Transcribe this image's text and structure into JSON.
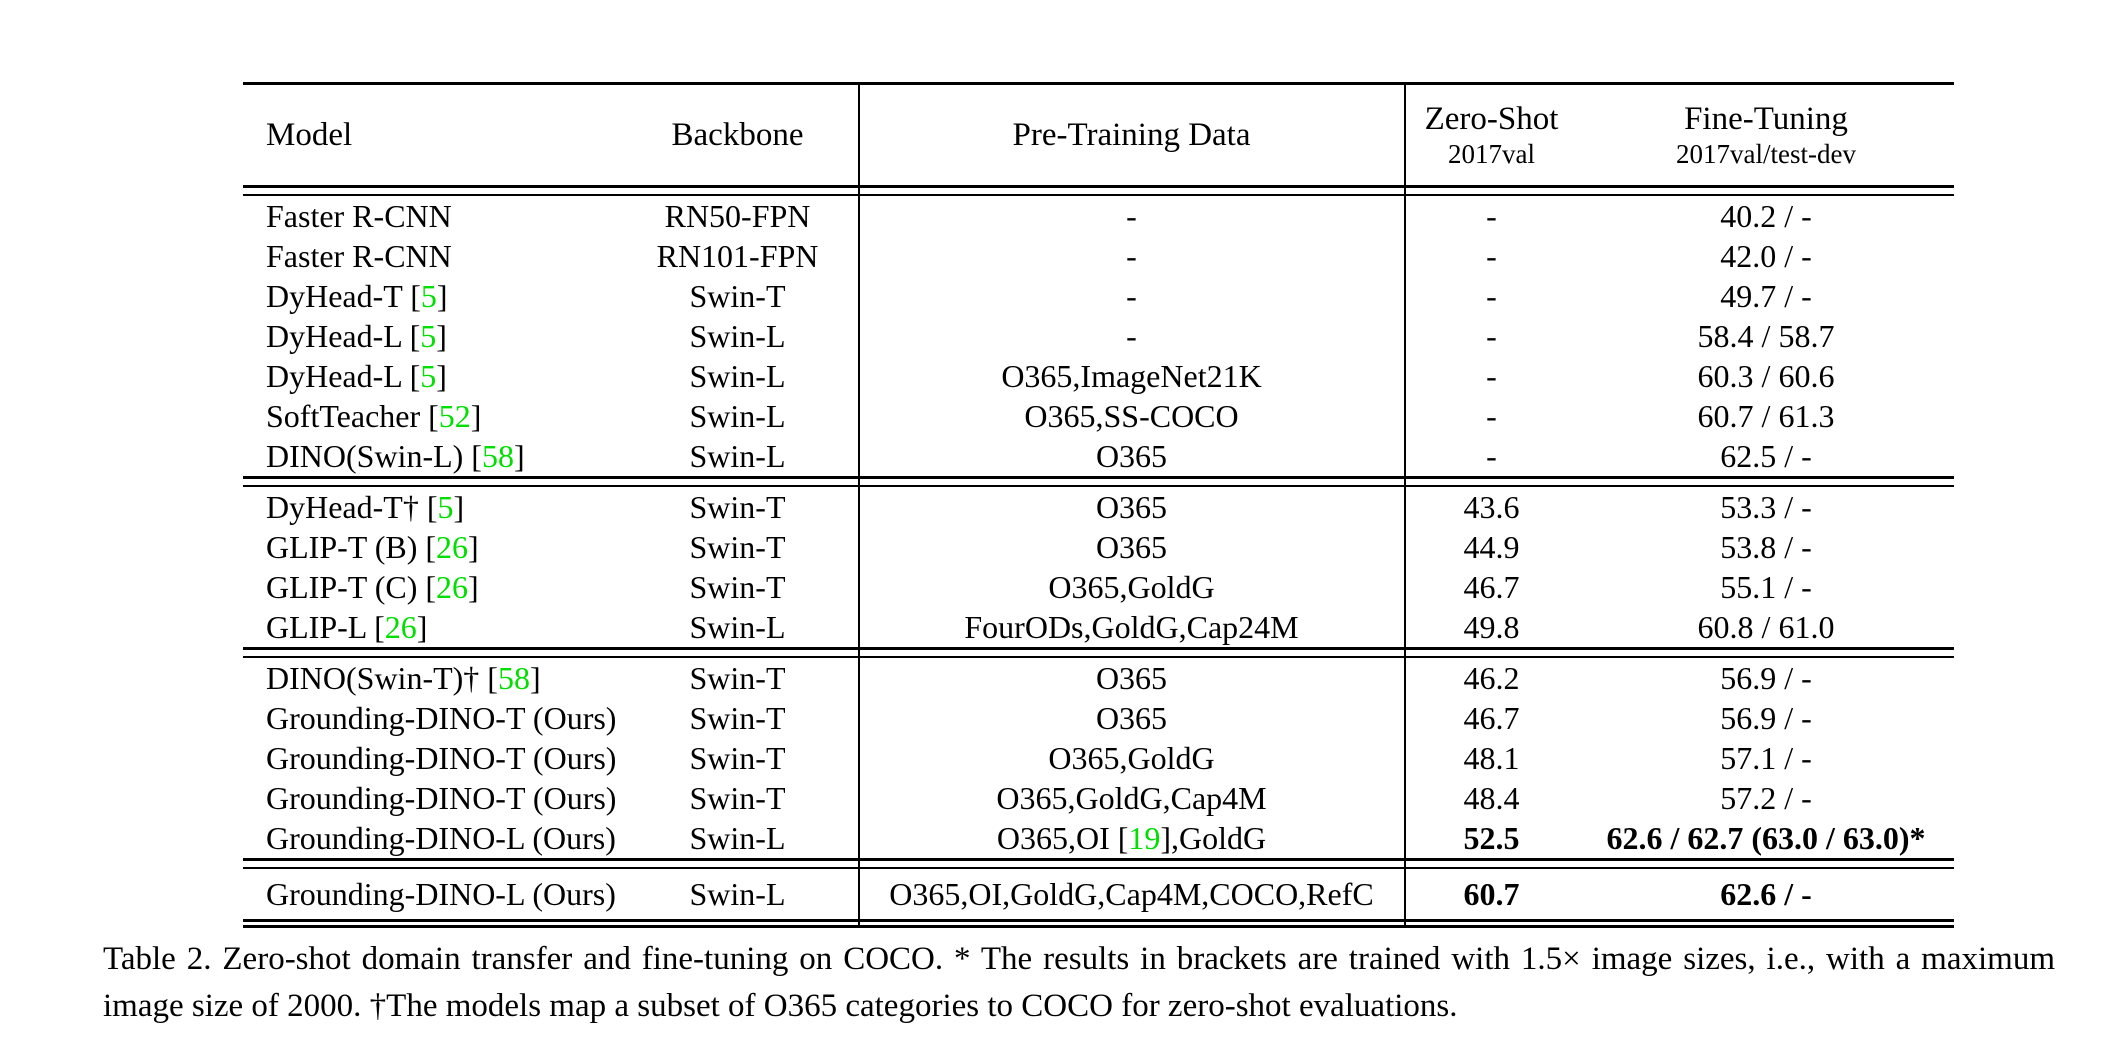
{
  "colors": {
    "row_highlight": "#ececec",
    "citation_green": "#00df00",
    "text": "#000000",
    "background": "#ffffff"
  },
  "table": {
    "header": {
      "model": "Model",
      "backbone": "Backbone",
      "pretrain": "Pre-Training Data",
      "zeroshot_line1": "Zero-Shot",
      "zeroshot_line2": "2017val",
      "finetune_line1": "Fine-Tuning",
      "finetune_line2": "2017val/test-dev"
    },
    "groups": [
      {
        "rows": [
          {
            "model": "Faster R-CNN",
            "backbone": "RN50-FPN",
            "pretrain": "-",
            "zeroshot": "-",
            "finetune": "40.2 / -",
            "highlight": false,
            "bold_values": false
          },
          {
            "model": "Faster R-CNN",
            "backbone": "RN101-FPN",
            "pretrain": "-",
            "zeroshot": "-",
            "finetune": "42.0 / -",
            "highlight": false,
            "bold_values": false
          },
          {
            "model": "DyHead-T [5]",
            "backbone": "Swin-T",
            "pretrain": "-",
            "zeroshot": "-",
            "finetune": "49.7 / -",
            "highlight": false,
            "bold_values": false
          },
          {
            "model": "DyHead-L [5]",
            "backbone": "Swin-L",
            "pretrain": "-",
            "zeroshot": "-",
            "finetune": "58.4 / 58.7",
            "highlight": false,
            "bold_values": false
          },
          {
            "model": "DyHead-L [5]",
            "backbone": "Swin-L",
            "pretrain": "O365,ImageNet21K",
            "zeroshot": "-",
            "finetune": "60.3 / 60.6",
            "highlight": false,
            "bold_values": false
          },
          {
            "model": "SoftTeacher [52]",
            "backbone": "Swin-L",
            "pretrain": "O365,SS-COCO",
            "zeroshot": "-",
            "finetune": "60.7 / 61.3",
            "highlight": false,
            "bold_values": false
          },
          {
            "model": "DINO(Swin-L) [58]",
            "backbone": "Swin-L",
            "pretrain": "O365",
            "zeroshot": "-",
            "finetune": "62.5 / -",
            "highlight": false,
            "bold_values": false
          }
        ]
      },
      {
        "rows": [
          {
            "model": "DyHead-T† [5]",
            "backbone": "Swin-T",
            "pretrain": "O365",
            "zeroshot": "43.6",
            "finetune": "53.3 / -",
            "highlight": false,
            "bold_values": false
          },
          {
            "model": "GLIP-T (B) [26]",
            "backbone": "Swin-T",
            "pretrain": "O365",
            "zeroshot": "44.9",
            "finetune": "53.8 / -",
            "highlight": false,
            "bold_values": false
          },
          {
            "model": "GLIP-T (C) [26]",
            "backbone": "Swin-T",
            "pretrain": "O365,GoldG",
            "zeroshot": "46.7",
            "finetune": "55.1 / -",
            "highlight": false,
            "bold_values": false
          },
          {
            "model": "GLIP-L [26]",
            "backbone": "Swin-L",
            "pretrain": "FourODs,GoldG,Cap24M",
            "zeroshot": "49.8",
            "finetune": "60.8 / 61.0",
            "highlight": false,
            "bold_values": false
          }
        ]
      },
      {
        "rows": [
          {
            "model": "DINO(Swin-T)† [58]",
            "backbone": "Swin-T",
            "pretrain": "O365",
            "zeroshot": "46.2",
            "finetune": "56.9 / -",
            "highlight": false,
            "bold_values": false
          },
          {
            "model": "Grounding-DINO-T (Ours)",
            "backbone": "Swin-T",
            "pretrain": "O365",
            "zeroshot": "46.7",
            "finetune": "56.9 / -",
            "highlight": true,
            "bold_values": false
          },
          {
            "model": "Grounding-DINO-T (Ours)",
            "backbone": "Swin-T",
            "pretrain": "O365,GoldG",
            "zeroshot": "48.1",
            "finetune": "57.1 / -",
            "highlight": true,
            "bold_values": false
          },
          {
            "model": "Grounding-DINO-T (Ours)",
            "backbone": "Swin-T",
            "pretrain": "O365,GoldG,Cap4M",
            "zeroshot": "48.4",
            "finetune": "57.2 / -",
            "highlight": true,
            "bold_values": false
          },
          {
            "model": "Grounding-DINO-L (Ours)",
            "backbone": "Swin-L",
            "pretrain": "O365,OI [19],GoldG",
            "zeroshot": "52.5",
            "finetune": "62.6 / 62.7 (63.0 / 63.0)*",
            "highlight": true,
            "bold_values": true
          }
        ]
      },
      {
        "rows": [
          {
            "model": "Grounding-DINO-L (Ours)",
            "backbone": "Swin-L",
            "pretrain": "O365,OI,GoldG,Cap4M,COCO,RefC",
            "zeroshot": "60.7",
            "finetune": "62.6 / -",
            "highlight": true,
            "bold_values": true
          }
        ]
      }
    ]
  },
  "caption": {
    "text": "Table 2.  Zero-shot domain transfer and fine-tuning on COCO. * The results in brackets are trained with 1.5× image sizes, i.e., with a maximum image size of 2000. †The models map a subset of O365 categories to COCO for zero-shot evaluations."
  }
}
